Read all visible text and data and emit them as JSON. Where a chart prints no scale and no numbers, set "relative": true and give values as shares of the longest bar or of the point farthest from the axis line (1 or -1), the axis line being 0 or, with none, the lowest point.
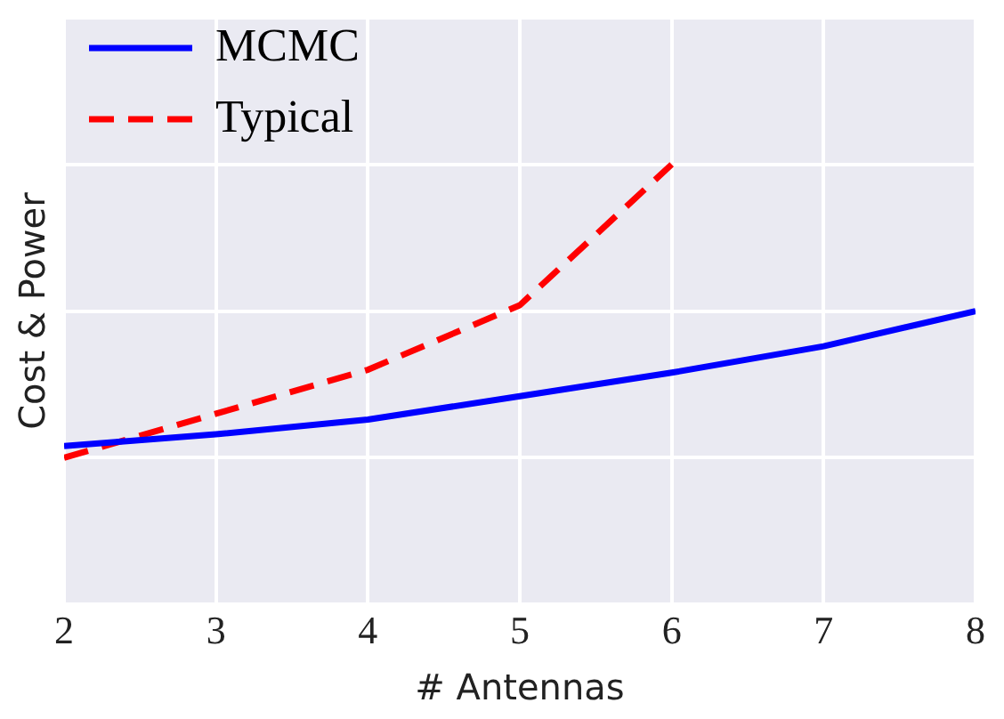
{
  "chart_data": {
    "type": "line",
    "xlabel": "# Antennas",
    "ylabel": "Cost & Power",
    "relative": true,
    "xlim": [
      2,
      8
    ],
    "xticks": [
      2,
      3,
      4,
      5,
      6,
      7,
      8
    ],
    "grid": true,
    "legend": "top left",
    "tick_labels": "x",
    "marker": "none",
    "series": [
      {
        "name": "MCMC",
        "color": "#0000ff",
        "line_style": "solid",
        "x": [
          2,
          3,
          4,
          5,
          6,
          7,
          8
        ],
        "values": [
          0.04,
          0.08,
          0.13,
          0.21,
          0.29,
          0.38,
          0.5
        ]
      },
      {
        "name": "Typical",
        "color": "#ff0000",
        "line_style": "dashed",
        "x": [
          2,
          3,
          4,
          5,
          6
        ],
        "values": [
          0,
          0.15,
          0.3,
          0.52,
          1
        ]
      }
    ]
  }
}
